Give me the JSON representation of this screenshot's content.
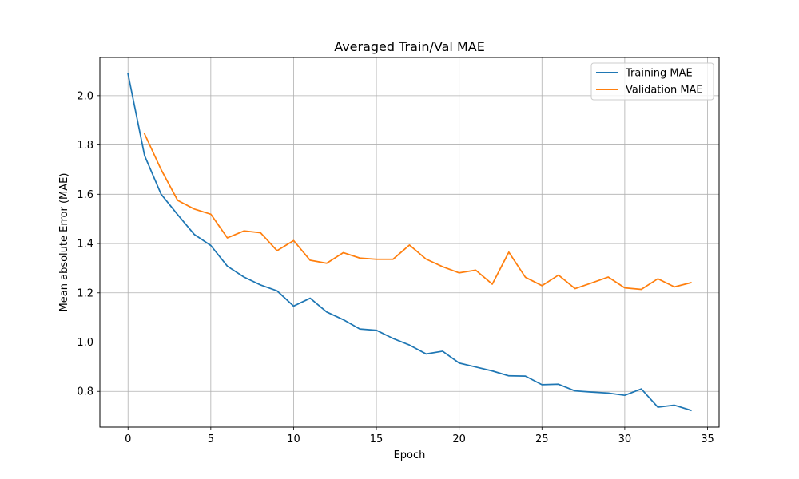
{
  "chart_data": {
    "type": "line",
    "title": "Averaged Train/Val MAE",
    "xlabel": "Epoch",
    "ylabel": "Mean absolute Error (MAE)",
    "xlim": [
      -1.7,
      35.7
    ],
    "ylim": [
      0.655,
      2.155
    ],
    "xticks": [
      0,
      5,
      10,
      15,
      20,
      25,
      30,
      35
    ],
    "yticks": [
      0.8,
      1.0,
      1.2,
      1.4,
      1.6,
      1.8,
      2.0
    ],
    "xtick_labels": [
      "0",
      "5",
      "10",
      "15",
      "20",
      "25",
      "30",
      "35"
    ],
    "ytick_labels": [
      "0.8",
      "1.0",
      "1.2",
      "1.4",
      "1.6",
      "1.8",
      "2.0"
    ],
    "grid": true,
    "legend_position": "top-right",
    "series": [
      {
        "name": "Training MAE",
        "color": "#1f77b4",
        "x": [
          0,
          1,
          2,
          3,
          4,
          5,
          6,
          7,
          8,
          9,
          10,
          11,
          12,
          13,
          14,
          15,
          16,
          17,
          18,
          19,
          20,
          21,
          22,
          23,
          24,
          25,
          26,
          27,
          28,
          29,
          30,
          31,
          32,
          33,
          34
        ],
        "values": [
          2.088,
          1.757,
          1.6,
          1.517,
          1.437,
          1.392,
          1.308,
          1.264,
          1.232,
          1.208,
          1.146,
          1.178,
          1.122,
          1.091,
          1.053,
          1.048,
          1.015,
          0.988,
          0.952,
          0.963,
          0.915,
          0.899,
          0.883,
          0.863,
          0.862,
          0.827,
          0.829,
          0.802,
          0.797,
          0.793,
          0.784,
          0.81,
          0.736,
          0.744,
          0.723
        ]
      },
      {
        "name": "Validation MAE",
        "color": "#ff7f0e",
        "x": [
          1,
          2,
          3,
          4,
          5,
          6,
          7,
          8,
          9,
          10,
          11,
          12,
          13,
          14,
          15,
          16,
          17,
          18,
          19,
          20,
          21,
          22,
          23,
          24,
          25,
          26,
          27,
          28,
          29,
          30,
          31,
          32,
          33,
          34
        ],
        "values": [
          1.845,
          1.7,
          1.575,
          1.54,
          1.519,
          1.423,
          1.451,
          1.444,
          1.371,
          1.412,
          1.332,
          1.32,
          1.363,
          1.341,
          1.336,
          1.336,
          1.394,
          1.337,
          1.306,
          1.281,
          1.292,
          1.235,
          1.365,
          1.263,
          1.229,
          1.272,
          1.217,
          1.24,
          1.264,
          1.22,
          1.214,
          1.257,
          1.224,
          1.241
        ]
      }
    ]
  }
}
